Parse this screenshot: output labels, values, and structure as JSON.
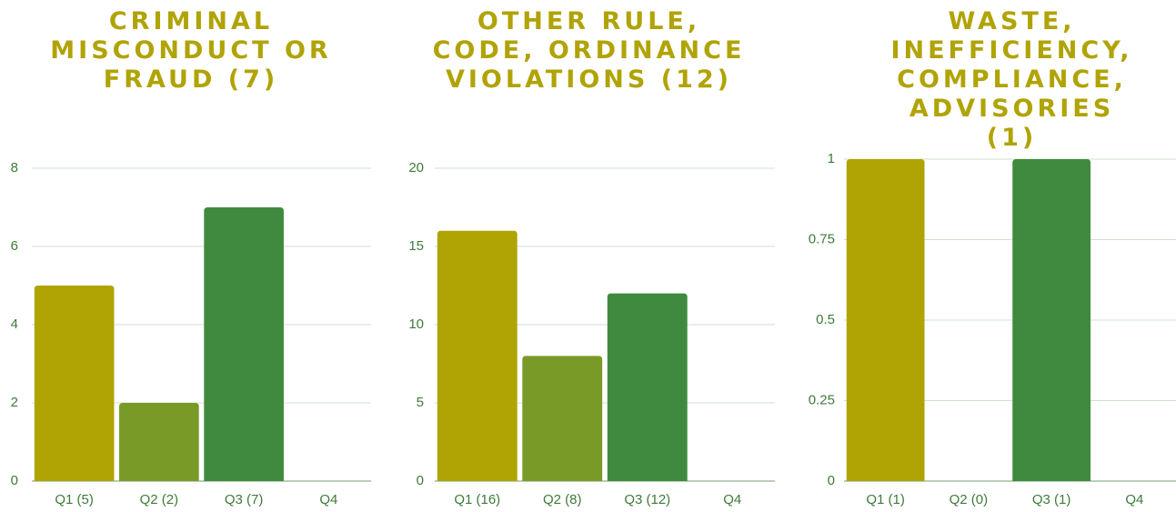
{
  "chart_data": [
    {
      "type": "bar",
      "title": "CRIMINAL MISCONDUCT OR FRAUD (7)",
      "categories": [
        "Q1 (5)",
        "Q2 (2)",
        "Q3 (7)",
        "Q4"
      ],
      "values": [
        5,
        2,
        7,
        null
      ],
      "colors": [
        "#b0a304",
        "#7a9a27",
        "#3f8a3f",
        "#3f8a3f"
      ],
      "ylim": [
        0,
        8
      ],
      "yticks": [
        0,
        2,
        4,
        6,
        8
      ],
      "grid": true
    },
    {
      "type": "bar",
      "title": "OTHER RULE, CODE, ORDINANCE VIOLATIONS (12)",
      "categories": [
        "Q1 (16)",
        "Q2 (8)",
        "Q3 (12)",
        "Q4"
      ],
      "values": [
        16,
        8,
        12,
        null
      ],
      "colors": [
        "#b0a304",
        "#7a9a27",
        "#3f8a3f",
        "#3f8a3f"
      ],
      "ylim": [
        0,
        20
      ],
      "yticks": [
        0,
        5,
        10,
        15,
        20
      ],
      "grid": true
    },
    {
      "type": "bar",
      "title": "WASTE, INEFFICIENCY, COMPLIANCE, ADVISORIES (1)",
      "categories": [
        "Q1 (1)",
        "Q2 (0)",
        "Q3 (1)",
        "Q4"
      ],
      "values": [
        1,
        0,
        1,
        null
      ],
      "colors": [
        "#b0a304",
        "#7a9a27",
        "#3f8a3f",
        "#3f8a3f"
      ],
      "ylim": [
        0,
        1
      ],
      "yticks": [
        0,
        0.25,
        0.5,
        0.75,
        1
      ],
      "grid": true
    }
  ]
}
